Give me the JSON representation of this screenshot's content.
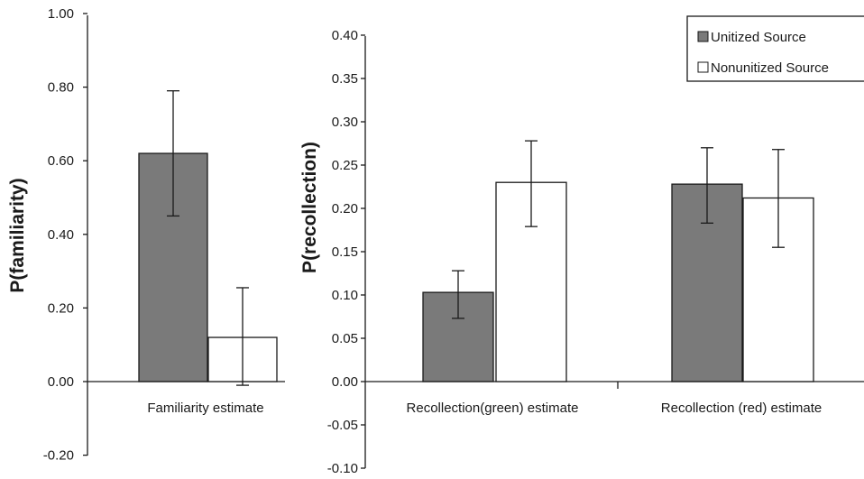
{
  "colors": {
    "unitized": "#7a7a7a",
    "nonunitized": "#ffffff",
    "ink": "#1a1a1a"
  },
  "chart_data": [
    {
      "type": "bar",
      "ylabel": "P(familiarity)",
      "categories": [
        "Familiarity estimate"
      ],
      "ylim": [
        -0.2,
        1.0
      ],
      "yticks": [
        "1.00",
        "0.80",
        "0.60",
        "0.40",
        "0.20",
        "0.00",
        "-0.20"
      ],
      "yticks_values": [
        1.0,
        0.8,
        0.6,
        0.4,
        0.2,
        0.0,
        -0.2
      ],
      "series": [
        {
          "values": [
            0.62
          ],
          "error_low": [
            0.45
          ],
          "error_high": [
            0.79
          ]
        },
        {
          "values": [
            0.12
          ],
          "error_low": [
            -0.01
          ],
          "error_high": [
            0.255
          ]
        }
      ]
    },
    {
      "type": "bar",
      "ylabel": "P(recollection)",
      "categories": [
        "Recollection(green) estimate",
        "Recollection (red) estimate"
      ],
      "ylim": [
        -0.1,
        0.4
      ],
      "yticks": [
        "0.40",
        "0.35",
        "0.30",
        "0.25",
        "0.20",
        "0.15",
        "0.10",
        "0.05",
        "0.00",
        "-0.05",
        "-0.10"
      ],
      "yticks_values": [
        0.4,
        0.35,
        0.3,
        0.25,
        0.2,
        0.15,
        0.1,
        0.05,
        0.0,
        -0.05,
        -0.1
      ],
      "legend_placement": "top-right",
      "series": [
        {
          "name": "Unitized Source",
          "values": [
            0.103,
            0.228
          ],
          "error_low": [
            0.073,
            0.183
          ],
          "error_high": [
            0.128,
            0.27
          ]
        },
        {
          "name": "Nonunitized Source",
          "values": [
            0.23,
            0.212
          ],
          "error_low": [
            0.179,
            0.155
          ],
          "error_high": [
            0.278,
            0.268
          ]
        }
      ]
    }
  ]
}
